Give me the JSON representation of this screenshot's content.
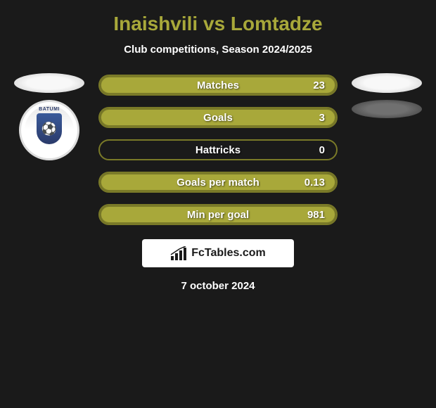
{
  "title": "Inaishvili vs Lomtadze",
  "subtitle": "Club competitions, Season 2024/2025",
  "title_color": "#a8a83a",
  "background_color": "#1a1a1a",
  "stats": [
    {
      "label": "Matches",
      "value": "23",
      "fill_pct": 100,
      "bar_color": "#a8a83a",
      "border_color": "#7a7a28"
    },
    {
      "label": "Goals",
      "value": "3",
      "fill_pct": 100,
      "bar_color": "#a8a83a",
      "border_color": "#7a7a28"
    },
    {
      "label": "Hattricks",
      "value": "0",
      "fill_pct": 0,
      "bar_color": "transparent",
      "border_color": "#7a7a28"
    },
    {
      "label": "Goals per match",
      "value": "0.13",
      "fill_pct": 100,
      "bar_color": "#a8a83a",
      "border_color": "#7a7a28"
    },
    {
      "label": "Min per goal",
      "value": "981",
      "fill_pct": 100,
      "bar_color": "#a8a83a",
      "border_color": "#7a7a28"
    }
  ],
  "bar_style": {
    "height": 30,
    "border_radius": 15,
    "label_fontsize": 15,
    "value_fontsize": 15,
    "text_color": "#ffffff"
  },
  "left_badge": {
    "top_text": "BATUMI",
    "shield_glyph": "⚽"
  },
  "footer_brand": "FcTables.com",
  "date": "7 october 2024"
}
